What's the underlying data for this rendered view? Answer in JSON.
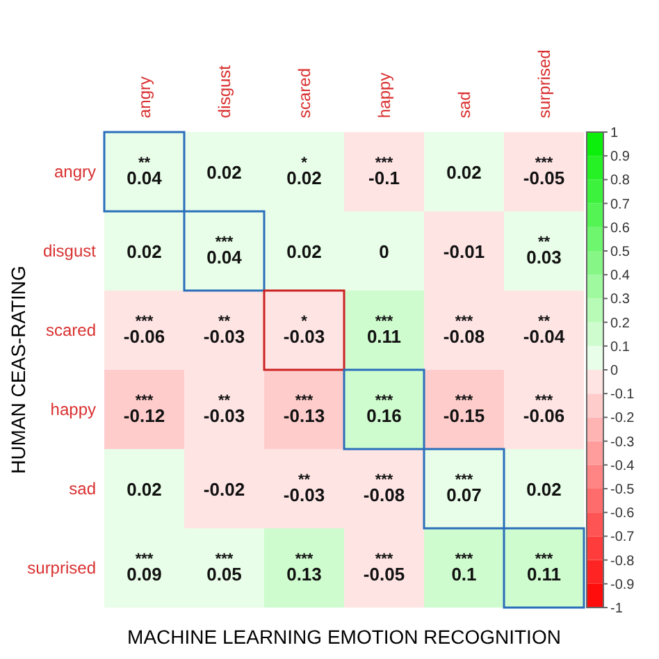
{
  "chart_data": {
    "type": "heatmap",
    "xlabel": "MACHINE LEARNING EMOTION RECOGNITION",
    "ylabel": "HUMAN CEAS-RATING",
    "categories": [
      "angry",
      "disgust",
      "scared",
      "happy",
      "sad",
      "surprised"
    ],
    "y_categories": [
      "angry",
      "disgust",
      "scared",
      "happy",
      "sad",
      "surprised"
    ],
    "cells": [
      [
        0.04,
        0.02,
        0.02,
        -0.1,
        0.02,
        -0.05
      ],
      [
        0.02,
        0.04,
        0.02,
        0,
        -0.01,
        0.03
      ],
      [
        -0.06,
        -0.03,
        -0.03,
        0.11,
        -0.08,
        -0.04
      ],
      [
        -0.12,
        -0.03,
        -0.13,
        0.16,
        -0.15,
        -0.06
      ],
      [
        0.02,
        -0.02,
        -0.03,
        -0.08,
        0.07,
        0.02
      ],
      [
        0.09,
        0.05,
        0.13,
        -0.05,
        0.1,
        0.11
      ]
    ],
    "cell_labels": [
      [
        "**\n0.04",
        "0.02",
        "*\n0.02",
        "***\n-0.1",
        "0.02",
        "***\n-0.05"
      ],
      [
        "0.02",
        "***\n0.04",
        "0.02",
        "0",
        "-0.01",
        "**\n0.03"
      ],
      [
        "***\n-0.06",
        "**\n-0.03",
        "*\n-0.03",
        "***\n0.11",
        "***\n-0.08",
        "**\n-0.04"
      ],
      [
        "***\n-0.12",
        "**\n-0.03",
        "***\n-0.13",
        "***\n0.16",
        "***\n-0.15",
        "***\n-0.06"
      ],
      [
        "0.02",
        "-0.02",
        "**\n-0.03",
        "***\n-0.08",
        "***\n0.07",
        "0.02"
      ],
      [
        "***\n0.09",
        "***\n0.05",
        "***\n0.13",
        "***\n-0.05",
        "***\n0.1",
        "***\n0.11"
      ]
    ],
    "clim": [
      -1,
      1
    ],
    "cticks": [
      1,
      0.9,
      0.8,
      0.7,
      0.6,
      0.5,
      0.4,
      0.3,
      0.2,
      0.1,
      0,
      -0.1,
      -0.2,
      -0.3,
      -0.4,
      -0.5,
      -0.6,
      -0.7,
      -0.8,
      -0.9,
      -1
    ]
  }
}
